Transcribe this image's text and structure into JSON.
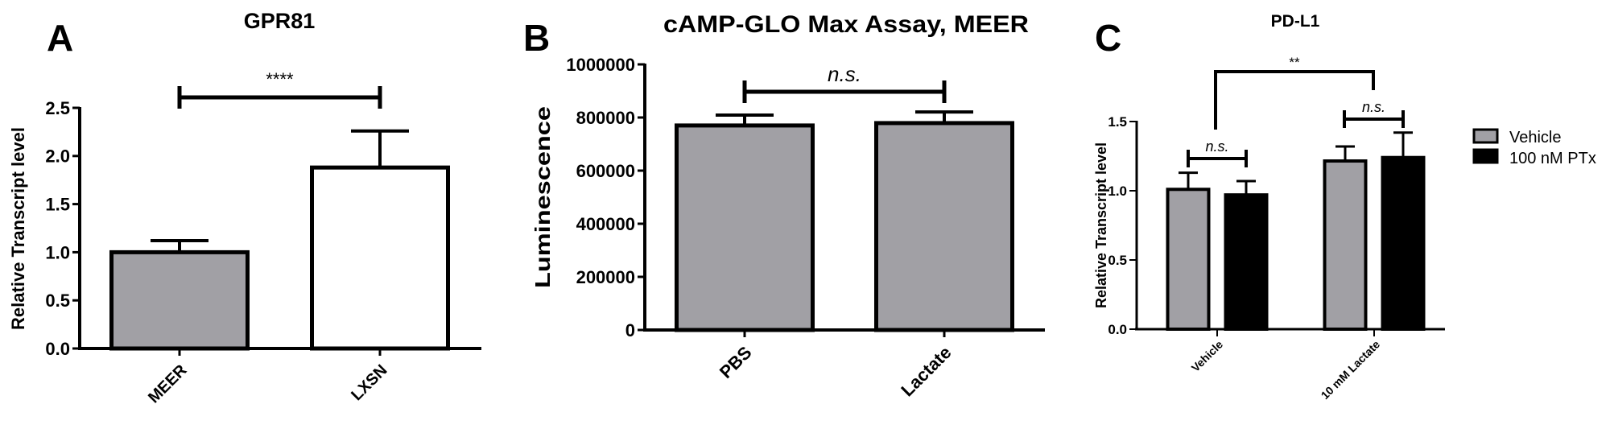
{
  "figure": {
    "panels": [
      "A",
      "B",
      "C"
    ]
  },
  "chart_data": [
    {
      "panel": "A",
      "type": "bar",
      "title": "GPR81",
      "xlabel": "",
      "ylabel": "Relative Transcript level",
      "categories": [
        "MEER",
        "LXSN"
      ],
      "values": [
        1.0,
        1.88
      ],
      "error_upper": [
        1.12,
        2.26
      ],
      "bar_colors": [
        "#a1a0a5",
        "#ffffff"
      ],
      "ylim": [
        0,
        2.5
      ],
      "yticks": [
        "0.0",
        "0.5",
        "1.0",
        "1.5",
        "2.0",
        "2.5"
      ],
      "grid": false,
      "annotations": [
        {
          "type": "significance",
          "between": [
            "MEER",
            "LXSN"
          ],
          "label": "****"
        }
      ]
    },
    {
      "panel": "B",
      "type": "bar",
      "title": "cAMP-GLO Max Assay, MEER",
      "xlabel": "",
      "ylabel": "Luminescence",
      "categories": [
        "PBS",
        "Lactate"
      ],
      "values": [
        770000,
        779000
      ],
      "error_upper": [
        809000,
        821000
      ],
      "bar_colors": [
        "#a1a0a5",
        "#a1a0a5"
      ],
      "ylim": [
        0,
        1000000
      ],
      "yticks": [
        "0",
        "200000",
        "400000",
        "600000",
        "800000",
        "1000000"
      ],
      "grid": false,
      "annotations": [
        {
          "type": "significance",
          "between": [
            "PBS",
            "Lactate"
          ],
          "label": "n.s."
        }
      ]
    },
    {
      "panel": "C",
      "type": "bar",
      "title": "PD-L1",
      "xlabel": "",
      "ylabel": "Relative Transcript level",
      "categories": [
        "Vehicle",
        "10 mM Lactate"
      ],
      "series": [
        {
          "name": "Vehicle",
          "color": "#a1a0a5",
          "values": [
            1.01,
            1.215
          ],
          "error_upper": [
            1.13,
            1.32
          ]
        },
        {
          "name": "100 nM PTx",
          "color": "#000000",
          "values": [
            0.97,
            1.24
          ],
          "error_upper": [
            1.07,
            1.42
          ]
        }
      ],
      "ylim": [
        0,
        1.5
      ],
      "yticks": [
        "0.0",
        "0.5",
        "1.0",
        "1.5"
      ],
      "grid": false,
      "legend_position": "right",
      "annotations": [
        {
          "type": "significance",
          "between": [
            "Vehicle / Vehicle",
            "Vehicle / 100 nM PTx"
          ],
          "label": "n.s."
        },
        {
          "type": "significance",
          "between": [
            "10 mM Lactate / Vehicle",
            "10 mM Lactate / 100 nM PTx"
          ],
          "label": "n.s."
        },
        {
          "type": "significance",
          "between": [
            "Vehicle",
            "10 mM Lactate"
          ],
          "label": "**"
        }
      ]
    }
  ]
}
